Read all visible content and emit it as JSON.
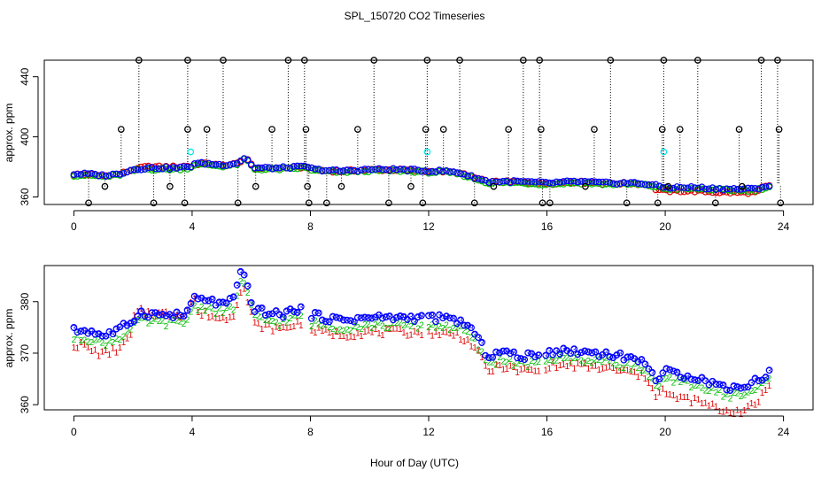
{
  "title": "SPL_150720  CO2 Timeseries",
  "xlabel": "Hour of Day (UTC)",
  "colors": {
    "flag": "#000000",
    "raw": "#00e5e5",
    "s1": "#dd0000",
    "s2": "#00bb00",
    "s3": "#0000ff"
  },
  "chart_data": [
    {
      "type": "scatter",
      "title": "SPL_150720  CO2 Timeseries",
      "xlabel": "",
      "ylabel": "approx. ppm",
      "xlim": [
        -1,
        25
      ],
      "ylim": [
        355,
        451
      ],
      "xticks": [
        0,
        4,
        8,
        12,
        16,
        20,
        24
      ],
      "yticks": [
        360,
        400,
        440
      ],
      "grid": false,
      "baseline": [
        [
          0,
          375
        ],
        [
          0.5,
          375
        ],
        [
          1,
          374
        ],
        [
          1.5,
          375
        ],
        [
          2,
          378
        ],
        [
          2.5,
          379
        ],
        [
          3,
          379
        ],
        [
          3.5,
          379
        ],
        [
          3.95,
          380
        ],
        [
          4.05,
          382
        ],
        [
          4.5,
          382
        ],
        [
          5,
          381
        ],
        [
          5.5,
          382
        ],
        [
          5.8,
          386
        ],
        [
          6.1,
          379
        ],
        [
          7,
          379
        ],
        [
          7.9,
          380
        ],
        [
          8.1,
          378
        ],
        [
          9,
          377
        ],
        [
          10,
          378
        ],
        [
          11,
          378
        ],
        [
          12,
          377
        ],
        [
          12.5,
          377
        ],
        [
          13,
          376
        ],
        [
          13.5,
          373
        ],
        [
          14,
          370
        ],
        [
          15,
          370
        ],
        [
          16,
          369
        ],
        [
          17,
          370
        ],
        [
          18,
          369
        ],
        [
          19,
          369
        ],
        [
          19.5,
          368
        ],
        [
          20,
          366
        ],
        [
          21,
          366
        ],
        [
          22,
          365
        ],
        [
          23,
          365
        ],
        [
          23.7,
          368
        ]
      ],
      "spikes_high": [
        2.2,
        3.85,
        5.05,
        7.25,
        7.8,
        10.15,
        11.95,
        13.05,
        15.2,
        15.75,
        18.15,
        19.95,
        21.1,
        23.25,
        23.8
      ],
      "spikes_mid": [
        1.6,
        3.85,
        4.5,
        6.7,
        7.85,
        9.6,
        11.9,
        12.5,
        14.7,
        15.8,
        17.6,
        19.9,
        20.5,
        22.5,
        23.85
      ],
      "spikes_low": [
        0.5,
        2.7,
        3.75,
        5.55,
        7.95,
        8.55,
        10.65,
        11.8,
        13.55,
        15.85,
        16.1,
        18.7,
        19.75,
        21.7,
        23.9
      ],
      "spikes_minor": [
        1.05,
        3.25,
        6.15,
        7.9,
        9.05,
        11.4,
        14.2,
        17.3,
        20.1,
        22.6
      ],
      "cyan_points": [
        [
          3.95,
          390
        ],
        [
          11.95,
          390
        ],
        [
          19.95,
          390
        ]
      ],
      "series": [
        {
          "name": "",
          "key": "s1",
          "offset": 0
        },
        {
          "name": "",
          "key": "s2",
          "offset": -0.5
        },
        {
          "name": "",
          "key": "s3",
          "offset": 0.3
        }
      ]
    },
    {
      "type": "scatter",
      "title": "",
      "xlabel": "Hour of Day (UTC)",
      "ylabel": "approx. ppm",
      "xlim": [
        -1,
        25
      ],
      "ylim": [
        359,
        387
      ],
      "xticks": [
        0,
        4,
        8,
        12,
        16,
        20,
        24
      ],
      "yticks": [
        360,
        370,
        380
      ],
      "grid": false,
      "baseline": [
        [
          0,
          374
        ],
        [
          0.5,
          374
        ],
        [
          1,
          373
        ],
        [
          1.5,
          374
        ],
        [
          2,
          376
        ],
        [
          2.2,
          377.5
        ],
        [
          3,
          377
        ],
        [
          3.8,
          377
        ],
        [
          4,
          380
        ],
        [
          4.5,
          380
        ],
        [
          5,
          379
        ],
        [
          5.4,
          380
        ],
        [
          5.7,
          386
        ],
        [
          6.1,
          378
        ],
        [
          7,
          377
        ],
        [
          7.7,
          378.5
        ],
        [
          8,
          377
        ],
        [
          9,
          376
        ],
        [
          10,
          376.5
        ],
        [
          11,
          376.5
        ],
        [
          11.8,
          376.5
        ],
        [
          12.1,
          376.5
        ],
        [
          13,
          376
        ],
        [
          13.5,
          374
        ],
        [
          14,
          369
        ],
        [
          14.5,
          370
        ],
        [
          15,
          369
        ],
        [
          15.8,
          369
        ],
        [
          16,
          370
        ],
        [
          17,
          370
        ],
        [
          18,
          369.5
        ],
        [
          19,
          368.5
        ],
        [
          19.5,
          367
        ],
        [
          19.7,
          364
        ],
        [
          20,
          366
        ],
        [
          21,
          365
        ],
        [
          22,
          363
        ],
        [
          22.6,
          363
        ],
        [
          23,
          364
        ],
        [
          23.7,
          366.5
        ]
      ],
      "series": [
        {
          "name": "",
          "key": "s1",
          "offset": -2.3,
          "marker": "1"
        },
        {
          "name": "",
          "key": "s2",
          "offset": -1,
          "marker": "2"
        },
        {
          "name": "",
          "key": "s3",
          "offset": 0.4,
          "marker": "3"
        }
      ]
    }
  ]
}
